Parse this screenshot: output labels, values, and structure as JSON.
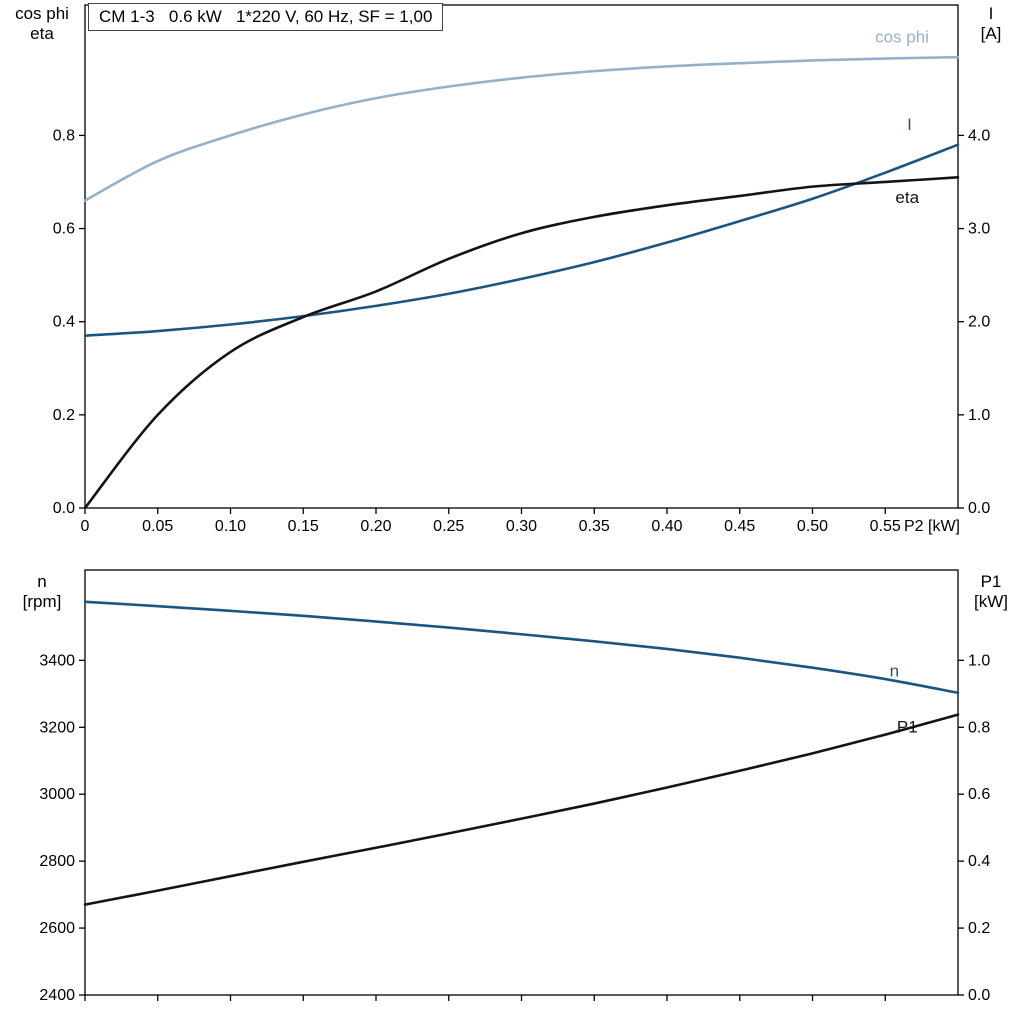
{
  "title_box": "CM 1-3   0.6 kW   1*220 V, 60 Hz, SF = 1,00",
  "colors": {
    "dark_blue": "#1a567f",
    "light_blue": "#93b1c9",
    "black": "#141414",
    "frame": "#000000"
  },
  "chart_data": [
    {
      "type": "line",
      "name": "motor-electrical-curves",
      "xlim": [
        0,
        0.6
      ],
      "x_ticks": {
        "values": [
          0,
          0.05,
          0.1,
          0.15,
          0.2,
          0.25,
          0.3,
          0.35,
          0.4,
          0.45,
          0.5,
          0.55
        ],
        "labels": [
          "0",
          "0.05",
          "0.10",
          "0.15",
          "0.20",
          "0.25",
          "0.30",
          "0.35",
          "0.40",
          "0.45",
          "0.50",
          "0.55"
        ],
        "end_label": "P2 [kW]"
      },
      "left_axis": {
        "title_lines": [
          "cos phi",
          "eta"
        ],
        "lim": [
          0,
          1.08
        ],
        "ticks": [
          0,
          0.2,
          0.4,
          0.6,
          0.8
        ],
        "tick_labels": [
          "0.0",
          "0.2",
          "0.4",
          "0.6",
          "0.8"
        ]
      },
      "right_axis": {
        "title_lines": [
          "I",
          "[A]"
        ],
        "lim": [
          0,
          5.4
        ],
        "ticks": [
          0,
          1,
          2,
          3,
          4
        ],
        "tick_labels": [
          "0.0",
          "1.0",
          "2.0",
          "3.0",
          "4.0"
        ]
      },
      "x": [
        0,
        0.05,
        0.1,
        0.15,
        0.2,
        0.25,
        0.3,
        0.35,
        0.4,
        0.45,
        0.5,
        0.55,
        0.6
      ],
      "series": [
        {
          "name": "cos phi",
          "axis": "left",
          "color_key": "light_blue",
          "values": [
            0.66,
            0.745,
            0.8,
            0.845,
            0.88,
            0.905,
            0.924,
            0.938,
            0.948,
            0.955,
            0.961,
            0.965,
            0.968
          ],
          "label": "cos phi",
          "label_x": 0.543,
          "label_y": 1.0,
          "label_color_key": "light_blue"
        },
        {
          "name": "I",
          "axis": "right",
          "color_key": "dark_blue",
          "values": [
            1.85,
            1.9,
            1.97,
            2.06,
            2.17,
            2.3,
            2.46,
            2.64,
            2.85,
            3.08,
            3.32,
            3.6,
            3.9
          ],
          "label": "I",
          "label_x": 0.565,
          "label_y": 4.06,
          "label_color_key": "dark_blue"
        },
        {
          "name": "eta",
          "axis": "left",
          "color_key": "black",
          "values": [
            0,
            0.2,
            0.335,
            0.41,
            0.465,
            0.535,
            0.59,
            0.625,
            0.65,
            0.67,
            0.69,
            0.7,
            0.71
          ],
          "label": "eta",
          "label_x": 0.557,
          "label_y": 0.655,
          "label_color_key": "black"
        }
      ]
    },
    {
      "type": "line",
      "name": "motor-speed-power-curves",
      "xlim": [
        0,
        0.6
      ],
      "x_ticks": {
        "values": [
          0,
          0.05,
          0.1,
          0.15,
          0.2,
          0.25,
          0.3,
          0.35,
          0.4,
          0.45,
          0.5,
          0.55
        ],
        "labels": [],
        "end_label": ""
      },
      "left_axis": {
        "title_lines": [
          "n",
          "[rpm]"
        ],
        "lim": [
          2400,
          3670
        ],
        "ticks": [
          2400,
          2600,
          2800,
          3000,
          3200,
          3400
        ],
        "tick_labels": [
          "2400",
          "2600",
          "2800",
          "3000",
          "3200",
          "3400"
        ]
      },
      "right_axis": {
        "title_lines": [
          "P1",
          "[kW]"
        ],
        "lim": [
          0,
          1.27
        ],
        "ticks": [
          0,
          0.2,
          0.4,
          0.6,
          0.8,
          1
        ],
        "tick_labels": [
          "0.0",
          "0.2",
          "0.4",
          "0.6",
          "0.8",
          "1.0"
        ]
      },
      "x": [
        0,
        0.05,
        0.1,
        0.15,
        0.2,
        0.25,
        0.3,
        0.35,
        0.4,
        0.45,
        0.5,
        0.55,
        0.6
      ],
      "series": [
        {
          "name": "n",
          "axis": "left",
          "color_key": "dark_blue",
          "values": [
            3575,
            3562,
            3548,
            3533,
            3516,
            3498,
            3478,
            3457,
            3434,
            3408,
            3378,
            3344,
            3303
          ],
          "label": "n",
          "label_x": 0.553,
          "label_y": 3352,
          "label_color_key": "dark_blue"
        },
        {
          "name": "P1",
          "axis": "right",
          "color_key": "black",
          "values": [
            0.27,
            0.312,
            0.355,
            0.398,
            0.44,
            0.483,
            0.527,
            0.572,
            0.62,
            0.67,
            0.722,
            0.778,
            0.838
          ],
          "label": "P1",
          "label_x": 0.558,
          "label_y": 0.785,
          "label_color_key": "black"
        }
      ]
    }
  ]
}
